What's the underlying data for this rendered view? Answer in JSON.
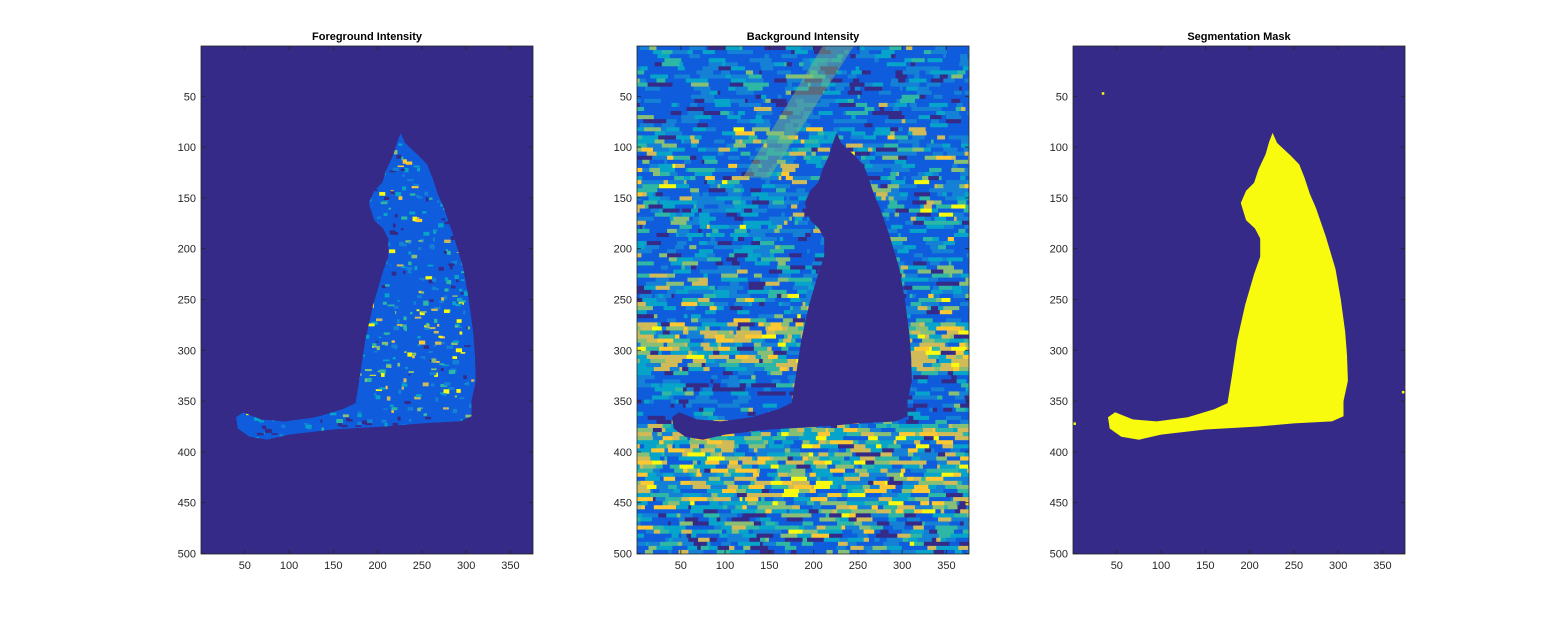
{
  "colors": {
    "background": "#ffffff",
    "axis": "#262626",
    "colormap": [
      "#352a87",
      "#0f5cdd",
      "#1481d6",
      "#06a4ca",
      "#2eb7a4",
      "#87bf77",
      "#d1bb59",
      "#fec832",
      "#f9fb0e"
    ]
  },
  "chart_data": [
    {
      "type": "heatmap",
      "title": "Foreground Intensity",
      "xlabel": "",
      "ylabel": "",
      "xlim": [
        0.5,
        375.5
      ],
      "ylim": [
        500.5,
        0.5
      ],
      "xticks": [
        "50",
        "100",
        "150",
        "200",
        "250",
        "300",
        "350"
      ],
      "yticks": [
        "50",
        "100",
        "150",
        "200",
        "250",
        "300",
        "350",
        "400",
        "450",
        "500"
      ],
      "image_size": [
        500,
        375
      ],
      "content": "low-valued background everywhere except a seated cat silhouette (columns ~40-310, rows ~85-385) showing mixed blue-green-yellow intensities"
    },
    {
      "type": "heatmap",
      "title": "Background Intensity",
      "xlabel": "",
      "ylabel": "",
      "xlim": [
        0.5,
        375.5
      ],
      "ylim": [
        500.5,
        0.5
      ],
      "xticks": [
        "50",
        "100",
        "150",
        "200",
        "250",
        "300",
        "350"
      ],
      "yticks": [
        "50",
        "100",
        "150",
        "200",
        "250",
        "300",
        "350",
        "400",
        "450",
        "500"
      ],
      "image_size": [
        500,
        375
      ],
      "content": "mixed blue-green-yellow intensities across the scene with a low-valued cat silhouette in the center"
    },
    {
      "type": "heatmap",
      "title": "Segmentation Mask",
      "xlabel": "",
      "ylabel": "",
      "xlim": [
        0.5,
        375.5
      ],
      "ylim": [
        500.5,
        0.5
      ],
      "xticks": [
        "50",
        "100",
        "150",
        "200",
        "250",
        "300",
        "350"
      ],
      "yticks": [
        "50",
        "100",
        "150",
        "200",
        "250",
        "300",
        "350",
        "400",
        "450",
        "500"
      ],
      "image_size": [
        500,
        375
      ],
      "content": "binary mask: cat silhouette = 1 (yellow), background = 0 (dark blue)"
    }
  ]
}
